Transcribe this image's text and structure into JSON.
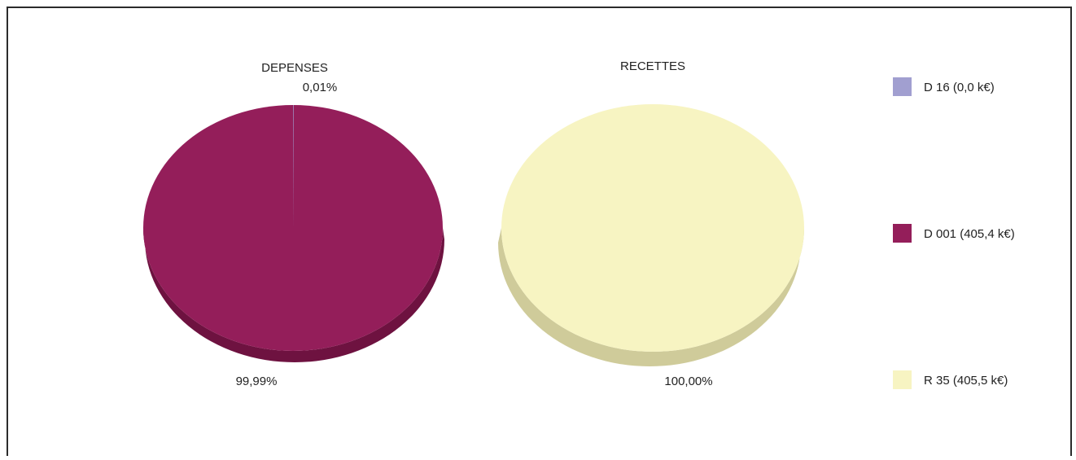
{
  "chart_data": {
    "type": "pie",
    "legend_position": "right",
    "legend": [
      {
        "label": "D 16 (0,0 k€)",
        "color": "#a19fd0"
      },
      {
        "label": "D 001 (405,4 k€)",
        "color": "#941e5a"
      },
      {
        "label": "R 35 (405,5 k€)",
        "color": "#f7f4c2"
      }
    ],
    "pies": [
      {
        "title": "DEPENSES",
        "slices": [
          {
            "series": "D 16",
            "value": 0.0,
            "percent_label": "0,01%",
            "color": "#a19fd0",
            "side_color": "#6f6da0"
          },
          {
            "series": "D 001",
            "value": 405.4,
            "percent_label": "99,99%",
            "color": "#941e5a",
            "side_color": "#6e1240"
          }
        ]
      },
      {
        "title": "RECETTES",
        "slices": [
          {
            "series": "R 35",
            "value": 405.5,
            "percent_label": "100,00%",
            "color": "#f7f4c2",
            "side_color": "#cfcb9a"
          }
        ]
      }
    ]
  }
}
